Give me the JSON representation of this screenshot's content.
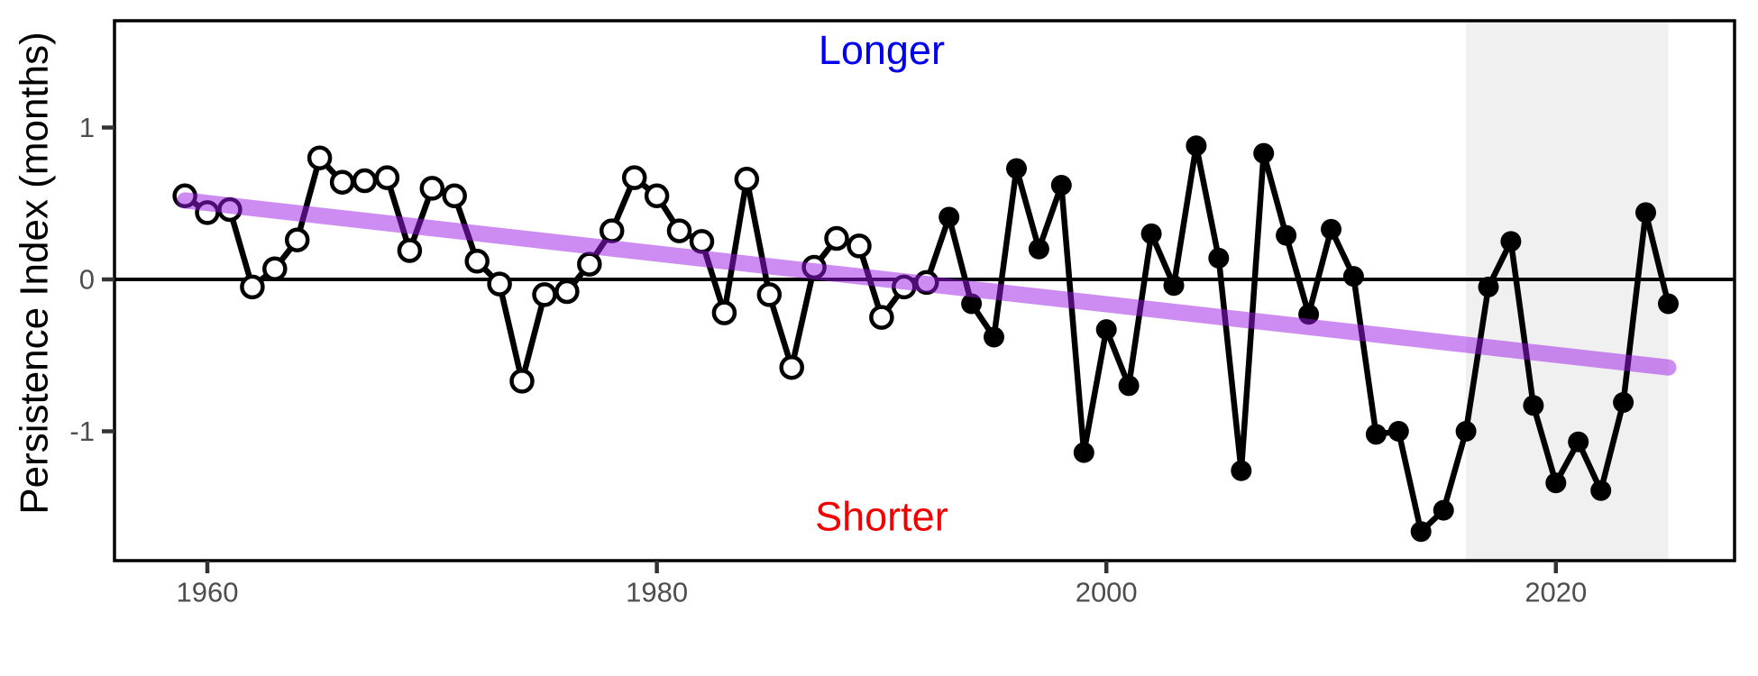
{
  "figure": {
    "background": "#ffffff",
    "panel_border_color": "#000000",
    "tick_color": "#333333",
    "tick_label_color": "#4d4d4d"
  },
  "chart_data": {
    "type": "line",
    "title": "",
    "xlabel": "",
    "ylabel": "Persistence Index (months)",
    "x_tick_labels": [
      "1960",
      "1980",
      "2000",
      "2020"
    ],
    "x_tick_values": [
      1960,
      1980,
      2000,
      2020
    ],
    "y_tick_labels": [
      "1",
      "0",
      "-1"
    ],
    "y_tick_values": [
      1,
      0,
      -1
    ],
    "xlim": [
      1955.9,
      2027.9
    ],
    "ylim": [
      -1.85,
      1.7
    ],
    "grid": "off",
    "zero_line": 0,
    "highlight_band": {
      "x_start": 2016,
      "x_end": 2025,
      "color": "#f0f0f0"
    },
    "annotations": [
      {
        "text": "Longer",
        "color": "#0000ee",
        "x": 1990,
        "y": 1.51
      },
      {
        "text": "Shorter",
        "color": "#f20000",
        "x": 1990,
        "y": -1.56
      }
    ],
    "trend": {
      "name": "linear-trend",
      "color": "rgba(155,25,229,0.5)",
      "start": {
        "year": 1959,
        "value": 0.52
      },
      "end": {
        "year": 2025,
        "value": -0.58
      }
    },
    "series": [
      {
        "name": "persistence-index",
        "color": "#000000",
        "marker_note": "open circles 1959-1992, filled circles 1993-2025",
        "points": [
          {
            "year": 1959,
            "value": 0.55,
            "marker": "open"
          },
          {
            "year": 1960,
            "value": 0.44,
            "marker": "open"
          },
          {
            "year": 1961,
            "value": 0.46,
            "marker": "open"
          },
          {
            "year": 1962,
            "value": -0.05,
            "marker": "open"
          },
          {
            "year": 1963,
            "value": 0.07,
            "marker": "open"
          },
          {
            "year": 1964,
            "value": 0.26,
            "marker": "open"
          },
          {
            "year": 1965,
            "value": 0.8,
            "marker": "open"
          },
          {
            "year": 1966,
            "value": 0.64,
            "marker": "open"
          },
          {
            "year": 1967,
            "value": 0.65,
            "marker": "open"
          },
          {
            "year": 1968,
            "value": 0.67,
            "marker": "open"
          },
          {
            "year": 1969,
            "value": 0.19,
            "marker": "open"
          },
          {
            "year": 1970,
            "value": 0.6,
            "marker": "open"
          },
          {
            "year": 1971,
            "value": 0.55,
            "marker": "open"
          },
          {
            "year": 1972,
            "value": 0.12,
            "marker": "open"
          },
          {
            "year": 1973,
            "value": -0.03,
            "marker": "open"
          },
          {
            "year": 1974,
            "value": -0.67,
            "marker": "open"
          },
          {
            "year": 1975,
            "value": -0.1,
            "marker": "open"
          },
          {
            "year": 1976,
            "value": -0.08,
            "marker": "open"
          },
          {
            "year": 1977,
            "value": 0.1,
            "marker": "open"
          },
          {
            "year": 1978,
            "value": 0.32,
            "marker": "open"
          },
          {
            "year": 1979,
            "value": 0.67,
            "marker": "open"
          },
          {
            "year": 1980,
            "value": 0.55,
            "marker": "open"
          },
          {
            "year": 1981,
            "value": 0.32,
            "marker": "open"
          },
          {
            "year": 1982,
            "value": 0.25,
            "marker": "open"
          },
          {
            "year": 1983,
            "value": -0.22,
            "marker": "open"
          },
          {
            "year": 1984,
            "value": 0.66,
            "marker": "open"
          },
          {
            "year": 1985,
            "value": -0.1,
            "marker": "open"
          },
          {
            "year": 1986,
            "value": -0.58,
            "marker": "open"
          },
          {
            "year": 1987,
            "value": 0.08,
            "marker": "open"
          },
          {
            "year": 1988,
            "value": 0.27,
            "marker": "open"
          },
          {
            "year": 1989,
            "value": 0.22,
            "marker": "open"
          },
          {
            "year": 1990,
            "value": -0.25,
            "marker": "open"
          },
          {
            "year": 1991,
            "value": -0.05,
            "marker": "open"
          },
          {
            "year": 1992,
            "value": -0.02,
            "marker": "open"
          },
          {
            "year": 1993,
            "value": 0.41,
            "marker": "filled"
          },
          {
            "year": 1994,
            "value": -0.16,
            "marker": "filled"
          },
          {
            "year": 1995,
            "value": -0.38,
            "marker": "filled"
          },
          {
            "year": 1996,
            "value": 0.73,
            "marker": "filled"
          },
          {
            "year": 1997,
            "value": 0.2,
            "marker": "filled"
          },
          {
            "year": 1998,
            "value": 0.62,
            "marker": "filled"
          },
          {
            "year": 1999,
            "value": -1.14,
            "marker": "filled"
          },
          {
            "year": 2000,
            "value": -0.33,
            "marker": "filled"
          },
          {
            "year": 2001,
            "value": -0.7,
            "marker": "filled"
          },
          {
            "year": 2002,
            "value": 0.3,
            "marker": "filled"
          },
          {
            "year": 2003,
            "value": -0.04,
            "marker": "filled"
          },
          {
            "year": 2004,
            "value": 0.88,
            "marker": "filled"
          },
          {
            "year": 2005,
            "value": 0.14,
            "marker": "filled"
          },
          {
            "year": 2006,
            "value": -1.26,
            "marker": "filled"
          },
          {
            "year": 2007,
            "value": 0.83,
            "marker": "filled"
          },
          {
            "year": 2008,
            "value": 0.29,
            "marker": "filled"
          },
          {
            "year": 2009,
            "value": -0.23,
            "marker": "filled"
          },
          {
            "year": 2010,
            "value": 0.33,
            "marker": "filled"
          },
          {
            "year": 2011,
            "value": 0.02,
            "marker": "filled"
          },
          {
            "year": 2012,
            "value": -1.02,
            "marker": "filled"
          },
          {
            "year": 2013,
            "value": -1.0,
            "marker": "filled"
          },
          {
            "year": 2014,
            "value": -1.66,
            "marker": "filled"
          },
          {
            "year": 2015,
            "value": -1.52,
            "marker": "filled"
          },
          {
            "year": 2016,
            "value": -1.0,
            "marker": "filled"
          },
          {
            "year": 2017,
            "value": -0.05,
            "marker": "filled"
          },
          {
            "year": 2018,
            "value": 0.25,
            "marker": "filled"
          },
          {
            "year": 2019,
            "value": -0.83,
            "marker": "filled"
          },
          {
            "year": 2020,
            "value": -1.34,
            "marker": "filled"
          },
          {
            "year": 2021,
            "value": -1.07,
            "marker": "filled"
          },
          {
            "year": 2022,
            "value": -1.39,
            "marker": "filled"
          },
          {
            "year": 2023,
            "value": -0.81,
            "marker": "filled"
          },
          {
            "year": 2024,
            "value": 0.44,
            "marker": "filled"
          },
          {
            "year": 2025,
            "value": -0.16,
            "marker": "filled"
          }
        ]
      }
    ]
  }
}
